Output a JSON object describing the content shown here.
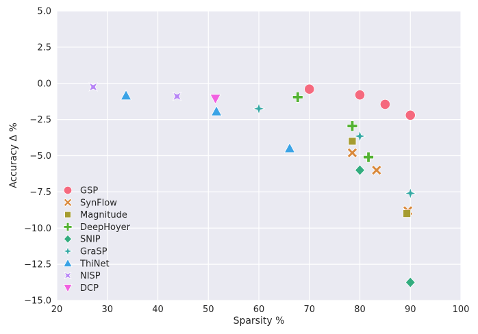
{
  "chart_data": {
    "type": "scatter",
    "title": "",
    "xlabel": "Sparsity %",
    "ylabel": "Accuracy Δ %",
    "xlim": [
      20,
      100
    ],
    "ylim": [
      -15,
      5
    ],
    "xticks": [
      20,
      30,
      40,
      50,
      60,
      70,
      80,
      90,
      100
    ],
    "yticks": [
      -15.0,
      -12.5,
      -10.0,
      -7.5,
      -5.0,
      -2.5,
      0.0,
      2.5,
      5.0
    ],
    "xtick_labels": [
      "20",
      "30",
      "40",
      "50",
      "60",
      "70",
      "80",
      "90",
      "100"
    ],
    "ytick_labels": [
      "−15.0",
      "−12.5",
      "−10.0",
      "−7.5",
      "−5.0",
      "−2.5",
      "0.0",
      "2.5",
      "5.0"
    ],
    "grid": true,
    "legend_position": "lower-left",
    "series": [
      {
        "name": "GSP",
        "marker": "circle",
        "color": "#f5697e",
        "points": [
          [
            70,
            -0.4
          ],
          [
            80,
            -0.8
          ],
          [
            85,
            -1.45
          ],
          [
            90,
            -2.2
          ]
        ]
      },
      {
        "name": "SynFlow",
        "marker": "x",
        "color": "#d9893c",
        "points": [
          [
            78.5,
            -4.8
          ],
          [
            83.3,
            -6.0
          ],
          [
            89.5,
            -8.8
          ]
        ]
      },
      {
        "name": "Magnitude",
        "marker": "square",
        "color": "#a59c30",
        "points": [
          [
            78.5,
            -4.0
          ],
          [
            89.3,
            -9.0
          ]
        ]
      },
      {
        "name": "DeepHoyer",
        "marker": "plus",
        "color": "#53b232",
        "points": [
          [
            67.7,
            -0.95
          ],
          [
            78.5,
            -2.95
          ],
          [
            81.7,
            -5.1
          ]
        ]
      },
      {
        "name": "SNIP",
        "marker": "diamond",
        "color": "#33ac7f",
        "points": [
          [
            80.0,
            -6.0
          ],
          [
            90.0,
            -13.75
          ]
        ]
      },
      {
        "name": "GraSP",
        "marker": "star4",
        "color": "#36a9a5",
        "points": [
          [
            60.0,
            -1.75
          ],
          [
            80.0,
            -3.65
          ],
          [
            90.0,
            -7.6
          ]
        ]
      },
      {
        "name": "ThiNet",
        "marker": "triangle-up",
        "color": "#3ba3e6",
        "points": [
          [
            33.7,
            -0.85
          ],
          [
            51.6,
            -1.95
          ],
          [
            66.1,
            -4.5
          ]
        ]
      },
      {
        "name": "NISP",
        "marker": "xstar",
        "color": "#b684f5",
        "points": [
          [
            27.2,
            -0.25
          ],
          [
            43.8,
            -0.9
          ]
        ]
      },
      {
        "name": "DCP",
        "marker": "triangle-down",
        "color": "#f160e0",
        "points": [
          [
            51.4,
            -1.05
          ]
        ]
      }
    ]
  }
}
